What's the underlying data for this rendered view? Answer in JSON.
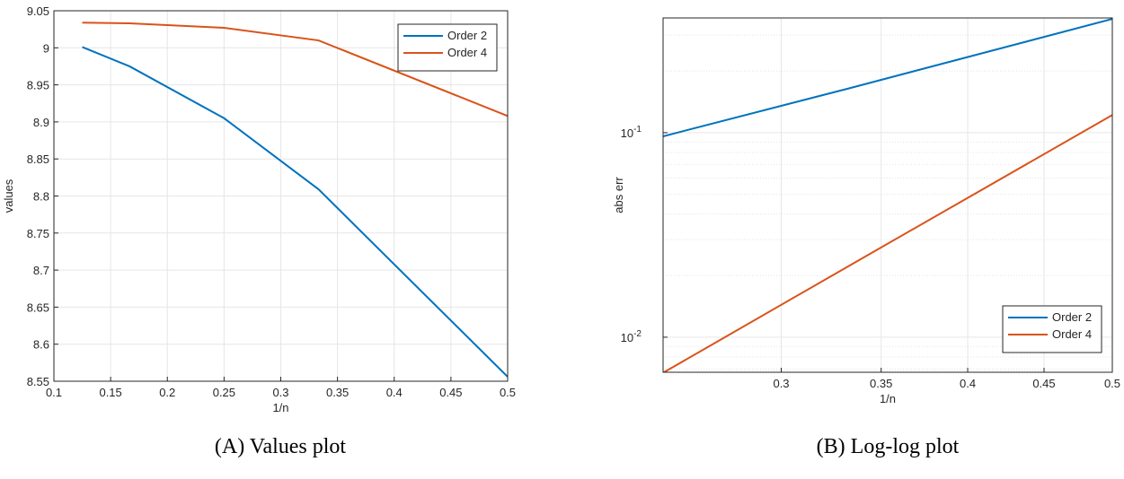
{
  "chart_data": [
    {
      "type": "line",
      "caption": "(A) Values plot",
      "xlabel": "1/n",
      "ylabel": "values",
      "x": [
        0.125,
        0.1667,
        0.25,
        0.3333,
        0.5
      ],
      "series": [
        {
          "name": "Order 2",
          "color": "#0072bd",
          "values": [
            9.001,
            8.975,
            8.905,
            8.809,
            8.556
          ]
        },
        {
          "name": "Order 4",
          "color": "#d95319",
          "values": [
            9.034,
            9.033,
            9.027,
            9.01,
            8.908
          ]
        }
      ],
      "xlim": [
        0.1,
        0.5
      ],
      "xticks": [
        0.1,
        0.15,
        0.2,
        0.25,
        0.3,
        0.35,
        0.4,
        0.45,
        0.5
      ],
      "ylim": [
        8.55,
        9.05
      ],
      "yticks": [
        8.55,
        8.6,
        8.65,
        8.7,
        8.75,
        8.8,
        8.85,
        8.9,
        8.95,
        9,
        9.05
      ],
      "grid": true,
      "legend": "top-right"
    },
    {
      "type": "line",
      "caption": "(B) Log-log plot",
      "xlabel": "1/n",
      "ylabel": "abs err",
      "x": [
        0.25,
        0.3333,
        0.5
      ],
      "series": [
        {
          "name": "Order 2",
          "color": "#0072bd",
          "values": [
            0.096,
            0.165,
            0.36
          ]
        },
        {
          "name": "Order 4",
          "color": "#d95319",
          "values": [
            0.0067,
            0.0224,
            0.122
          ]
        }
      ],
      "xlim": [
        0.25,
        0.5
      ],
      "xticks": [
        0.3,
        0.35,
        0.4,
        0.45,
        0.5
      ],
      "ylim": [
        0.00674,
        0.364
      ],
      "yticks": [
        {
          "value": 0.01,
          "label": "10",
          "exponent": "-2"
        },
        {
          "value": 0.1,
          "label": "10",
          "exponent": "-1"
        }
      ],
      "xscale": "log",
      "yscale": "log",
      "grid": true,
      "minor_grid": true,
      "legend": "bottom-right"
    }
  ]
}
